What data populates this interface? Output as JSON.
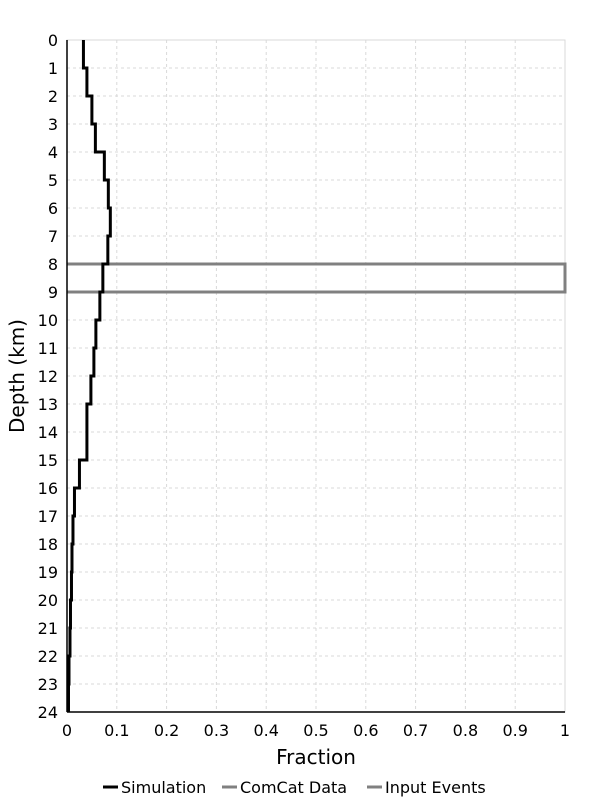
{
  "chart_data": {
    "type": "line",
    "xlabel": "Fraction",
    "ylabel": "Depth (km)",
    "xlim": [
      0,
      1
    ],
    "ylim": [
      0,
      24
    ],
    "y_inverted": true,
    "grid": true,
    "legend_position": "bottom",
    "x_ticks": [
      "0",
      "0.1",
      "0.2",
      "0.3",
      "0.4",
      "0.5",
      "0.6",
      "0.7",
      "0.8",
      "0.9",
      "1"
    ],
    "y_ticks": [
      "0",
      "1",
      "2",
      "3",
      "4",
      "5",
      "6",
      "7",
      "8",
      "9",
      "10",
      "11",
      "12",
      "13",
      "14",
      "15",
      "16",
      "17",
      "18",
      "19",
      "20",
      "21",
      "22",
      "23",
      "24"
    ],
    "series": [
      {
        "name": "Simulation",
        "color": "#000000",
        "depth_bins": [
          0,
          1,
          2,
          3,
          4,
          5,
          6,
          7,
          8,
          9,
          10,
          11,
          12,
          13,
          14,
          15,
          16,
          17,
          18,
          19,
          20,
          21,
          22,
          23
        ],
        "values": [
          0.033,
          0.04,
          0.05,
          0.057,
          0.075,
          0.083,
          0.087,
          0.082,
          0.072,
          0.066,
          0.058,
          0.054,
          0.048,
          0.04,
          0.04,
          0.025,
          0.015,
          0.012,
          0.01,
          0.009,
          0.007,
          0.006,
          0.004,
          0.003
        ]
      },
      {
        "name": "ComCat Data",
        "color": "#808080",
        "depth_bins": [
          8
        ],
        "values": [
          1.0
        ]
      },
      {
        "name": "Input Events",
        "color": "#808080",
        "depth_bins": [
          8
        ],
        "values": [
          1.0
        ]
      }
    ]
  }
}
